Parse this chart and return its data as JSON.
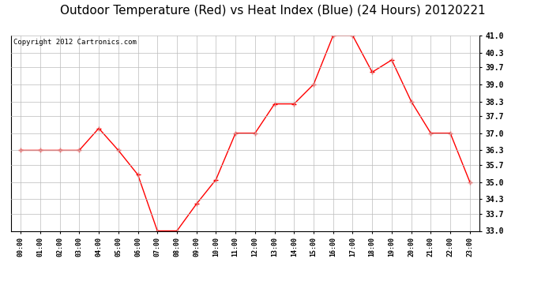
{
  "title": "Outdoor Temperature (Red) vs Heat Index (Blue) (24 Hours) 20120221",
  "copyright": "Copyright 2012 Cartronics.com",
  "x_labels": [
    "00:00",
    "01:00",
    "02:00",
    "03:00",
    "04:00",
    "05:00",
    "06:00",
    "07:00",
    "08:00",
    "09:00",
    "10:00",
    "11:00",
    "12:00",
    "13:00",
    "14:00",
    "15:00",
    "16:00",
    "17:00",
    "18:00",
    "19:00",
    "20:00",
    "21:00",
    "22:00",
    "23:00"
  ],
  "temp_data": [
    36.3,
    36.3,
    36.3,
    36.3,
    37.2,
    36.3,
    35.3,
    33.0,
    33.0,
    34.1,
    35.1,
    37.0,
    37.0,
    38.2,
    38.2,
    39.0,
    41.0,
    41.0,
    39.5,
    40.0,
    38.3,
    37.0,
    37.0,
    35.0
  ],
  "ylim_min": 33.0,
  "ylim_max": 41.0,
  "yticks": [
    33.0,
    33.7,
    34.3,
    35.0,
    35.7,
    36.3,
    37.0,
    37.7,
    38.3,
    39.0,
    39.7,
    40.3,
    41.0
  ],
  "line_color_temp": "red",
  "bg_color": "#ffffff",
  "grid_color": "#bbbbbb",
  "title_fontsize": 11,
  "copyright_fontsize": 6.5
}
